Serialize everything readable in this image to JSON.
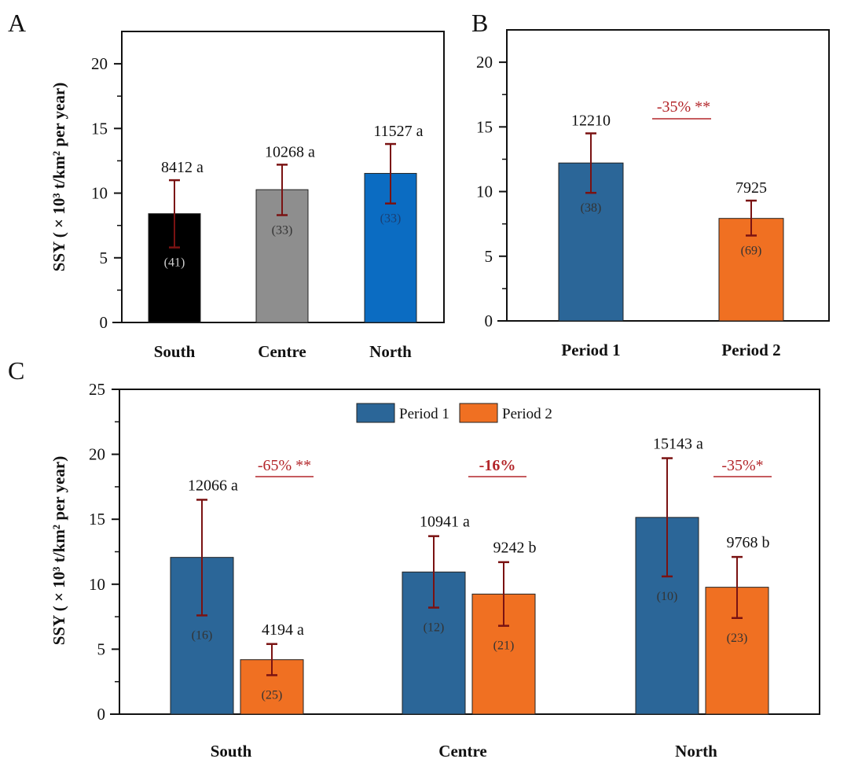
{
  "chart_data": [
    {
      "panel": "A",
      "type": "bar",
      "ylabel": "SSY ( × 10³ t/km² per year)",
      "ylim": [
        0,
        22.5
      ],
      "yticks": [
        0,
        5,
        10,
        15,
        20
      ],
      "categories": [
        "South",
        "Centre",
        "North"
      ],
      "values": [
        8.412,
        10.268,
        11.527
      ],
      "value_labels": [
        "8412 a",
        "10268  a",
        "11527 a"
      ],
      "n_labels": [
        "(41)",
        "(33)",
        "(33)"
      ],
      "error_low": [
        5.8,
        8.3,
        9.2
      ],
      "error_high": [
        11.0,
        12.2,
        13.8
      ],
      "colors": [
        "#000000",
        "#8e8e8e",
        "#0b6cc2"
      ],
      "n_colors": [
        "#cfcfcf",
        "#333333",
        "#1b3f73"
      ]
    },
    {
      "panel": "B",
      "type": "bar",
      "ylim": [
        0,
        22.5
      ],
      "yticks": [
        0,
        5,
        10,
        15,
        20
      ],
      "categories": [
        "Period 1",
        "Period 2"
      ],
      "values": [
        12.21,
        7.925
      ],
      "value_labels": [
        "12210",
        "7925"
      ],
      "n_labels": [
        "(38)",
        "(69)"
      ],
      "error_low": [
        9.9,
        6.6
      ],
      "error_high": [
        14.5,
        9.3
      ],
      "colors": [
        "#2b6698",
        "#f07022"
      ],
      "annotation": "-35% **"
    },
    {
      "panel": "C",
      "type": "bar",
      "ylabel": "SSY ( × 10³ t/km² per year)",
      "ylim": [
        0,
        25
      ],
      "yticks": [
        0,
        5,
        10,
        15,
        20,
        25
      ],
      "categories": [
        "South",
        "Centre",
        "North"
      ],
      "legend": "top-center",
      "series": [
        {
          "name": "Period 1",
          "color": "#2b6698",
          "values": [
            12.066,
            10.941,
            15.143
          ],
          "value_labels": [
            "12066  a",
            "10941  a",
            "15143  a"
          ],
          "n_labels": [
            "(16)",
            "(12)",
            "(10)"
          ],
          "error_low": [
            7.6,
            8.2,
            10.6
          ],
          "error_high": [
            16.5,
            13.7,
            19.7
          ]
        },
        {
          "name": "Period 2",
          "color": "#f07022",
          "values": [
            4.194,
            9.242,
            9.768
          ],
          "value_labels": [
            "4194  a",
            "9242 b",
            "9768  b"
          ],
          "n_labels": [
            "(25)",
            "(21)",
            "(23)"
          ],
          "error_low": [
            3.0,
            6.8,
            7.4
          ],
          "error_high": [
            5.4,
            11.7,
            12.1
          ]
        }
      ],
      "annotations": [
        "-65% **",
        "-16%",
        "-35%*"
      ]
    }
  ],
  "error_color": "#7a1212"
}
